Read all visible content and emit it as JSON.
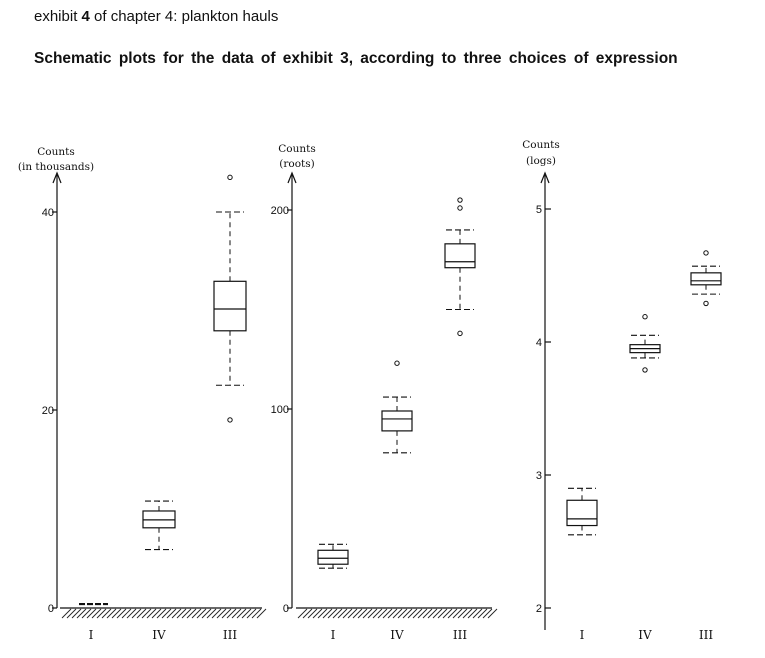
{
  "exhibit": {
    "prefix": "exhibit",
    "number": "4",
    "suffix": " of chapter 4: plankton hauls"
  },
  "caption": "Schematic plots for the data of exhibit 3, according to three choices of expression",
  "chart_data": [
    {
      "type": "boxplot",
      "ylabel": [
        "Counts",
        "(in thousands)"
      ],
      "ylim": [
        0,
        45
      ],
      "yticks": [
        0,
        20,
        40
      ],
      "categories": [
        "I",
        "IV",
        "III"
      ],
      "boxes": [
        {
          "category": "I",
          "whisker_low": 0.4,
          "q1": 0.4,
          "median": 0.4,
          "q3": 0.4,
          "whisker_high": 0.4,
          "outliers": []
        },
        {
          "category": "IV",
          "whisker_low": 5.9,
          "q1": 8.1,
          "median": 8.9,
          "q3": 9.8,
          "whisker_high": 10.8,
          "outliers": []
        },
        {
          "category": "III",
          "whisker_low": 22.5,
          "q1": 28.0,
          "median": 30.2,
          "q3": 33.0,
          "whisker_high": 40.0,
          "outliers": [
            19.0,
            43.5
          ]
        }
      ]
    },
    {
      "type": "boxplot",
      "ylabel": [
        "Counts",
        "(roots)"
      ],
      "ylim": [
        0,
        215
      ],
      "yticks": [
        0,
        100,
        200
      ],
      "categories": [
        "I",
        "IV",
        "III"
      ],
      "boxes": [
        {
          "category": "I",
          "whisker_low": 20,
          "q1": 22,
          "median": 25,
          "q3": 29,
          "whisker_high": 32,
          "outliers": []
        },
        {
          "category": "IV",
          "whisker_low": 78,
          "q1": 89,
          "median": 95,
          "q3": 99,
          "whisker_high": 106,
          "outliers": [
            123
          ]
        },
        {
          "category": "III",
          "whisker_low": 150,
          "q1": 171,
          "median": 174,
          "q3": 183,
          "whisker_high": 190,
          "outliers": [
            138,
            201,
            205
          ]
        }
      ]
    },
    {
      "type": "boxplot",
      "ylabel": [
        "Counts",
        "(logs)"
      ],
      "ylim": [
        2,
        5.1
      ],
      "yticks": [
        2,
        3,
        4,
        5
      ],
      "categories": [
        "I",
        "IV",
        "III"
      ],
      "boxes": [
        {
          "category": "I",
          "whisker_low": 2.55,
          "q1": 2.62,
          "median": 2.67,
          "q3": 2.81,
          "whisker_high": 2.9,
          "outliers": []
        },
        {
          "category": "IV",
          "whisker_low": 3.88,
          "q1": 3.92,
          "median": 3.95,
          "q3": 3.98,
          "whisker_high": 4.05,
          "outliers": [
            3.79,
            4.19
          ]
        },
        {
          "category": "III",
          "whisker_low": 4.36,
          "q1": 4.43,
          "median": 4.46,
          "q3": 4.52,
          "whisker_high": 4.57,
          "outliers": [
            4.29,
            4.67
          ]
        }
      ]
    }
  ]
}
